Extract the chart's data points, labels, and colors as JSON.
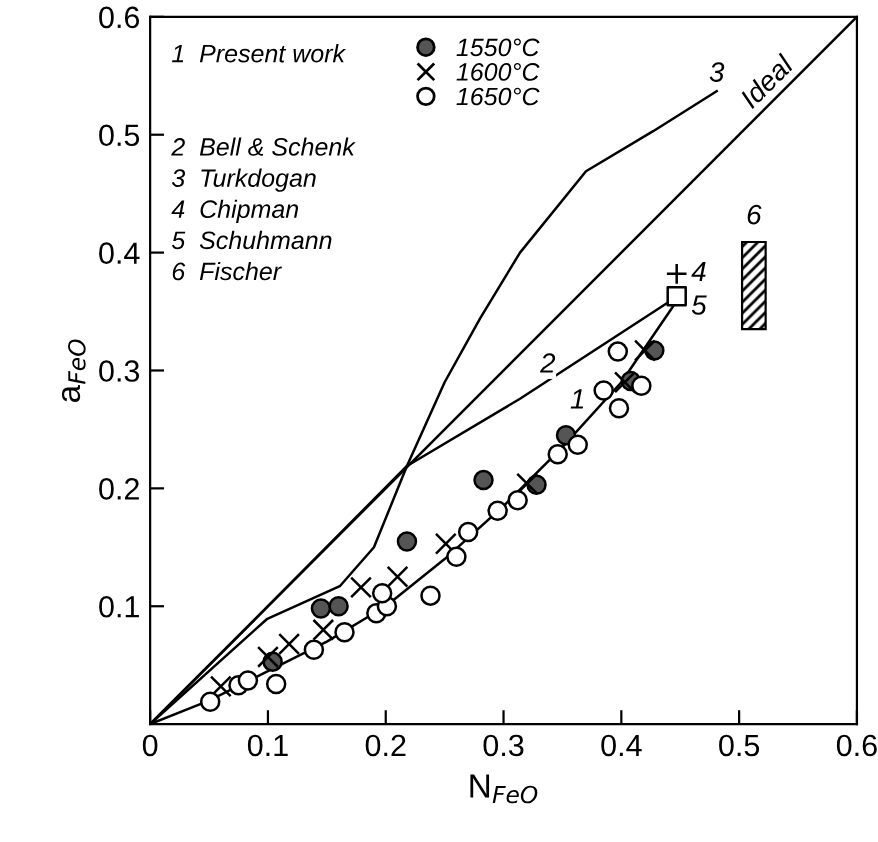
{
  "chart_data": {
    "type": "scatter",
    "xlabel": "N$_{FeO}$",
    "ylabel": "a$_{FeO}$",
    "xlim": [
      0,
      0.6
    ],
    "ylim": [
      0,
      0.6
    ],
    "xticks": [
      0,
      0.1,
      0.2,
      0.3,
      0.4,
      0.5,
      0.6
    ],
    "yticks": [
      0.1,
      0.2,
      0.3,
      0.4,
      0.5,
      0.6
    ],
    "grid": false,
    "legend": "top left",
    "series": [
      {
        "name": "1550°C",
        "marker": "circle",
        "color": "#555555",
        "x": [
          0.104,
          0.145,
          0.16,
          0.218,
          0.283,
          0.328,
          0.353,
          0.408,
          0.428
        ],
        "values": [
          0.053,
          0.098,
          0.1,
          0.155,
          0.207,
          0.203,
          0.245,
          0.291,
          0.317
        ]
      },
      {
        "name": "1600°C",
        "marker": "cross",
        "color": "#000000",
        "x": [
          0.06,
          0.1,
          0.118,
          0.147,
          0.179,
          0.21,
          0.251,
          0.32,
          0.403,
          0.42
        ],
        "values": [
          0.032,
          0.057,
          0.068,
          0.08,
          0.116,
          0.125,
          0.153,
          0.204,
          0.29,
          0.317
        ]
      },
      {
        "name": "1650°C",
        "marker": "circle",
        "color": "#ffffff",
        "x": [
          0.051,
          0.075,
          0.083,
          0.107,
          0.139,
          0.165,
          0.192,
          0.201,
          0.197,
          0.238,
          0.26,
          0.27,
          0.295,
          0.312,
          0.346,
          0.363,
          0.385,
          0.398,
          0.417,
          0.397
        ],
        "values": [
          0.019,
          0.033,
          0.037,
          0.034,
          0.063,
          0.078,
          0.094,
          0.1,
          0.111,
          0.109,
          0.142,
          0.163,
          0.181,
          0.19,
          0.229,
          0.237,
          0.283,
          0.268,
          0.287,
          0.316
        ]
      },
      {
        "name": "1",
        "type": "line",
        "color": "#000000",
        "x": [
          0,
          0.05,
          0.1,
          0.15,
          0.2,
          0.25,
          0.3,
          0.35,
          0.4,
          0.445
        ],
        "values": [
          0,
          0.02,
          0.045,
          0.07,
          0.1,
          0.14,
          0.185,
          0.235,
          0.29,
          0.356
        ]
      },
      {
        "name": "2",
        "type": "line",
        "color": "#000000",
        "x": [
          0,
          0.1,
          0.218,
          0.314,
          0.44
        ],
        "values": [
          0,
          0.1,
          0.219,
          0.276,
          0.358
        ]
      },
      {
        "name": "3",
        "type": "line",
        "color": "#000000",
        "x": [
          0,
          0.099,
          0.161,
          0.19,
          0.218,
          0.25,
          0.28,
          0.314,
          0.37,
          0.427,
          0.481
        ],
        "values": [
          0,
          0.089,
          0.117,
          0.15,
          0.219,
          0.29,
          0.344,
          0.4,
          0.469,
          0.503,
          0.537
        ]
      },
      {
        "name": "Ideal",
        "type": "line",
        "color": "#000000",
        "x": [
          0,
          0.6
        ],
        "values": [
          0,
          0.6
        ]
      },
      {
        "name": "4",
        "type": "scatter",
        "marker": "plus",
        "color": "#000000",
        "x": [
          0.447
        ],
        "values": [
          0.382
        ]
      },
      {
        "name": "5",
        "type": "scatter",
        "marker": "square",
        "color": "#ffffff",
        "x": [
          0.447
        ],
        "values": [
          0.363
        ]
      },
      {
        "name": "6",
        "type": "bar",
        "color": "#000000",
        "x": [
          0.5125
        ],
        "base": [
          0.335
        ],
        "values": [
          0.074
        ]
      }
    ],
    "annotations": [
      "1  Present work",
      "2  Bell & Schenk",
      "3  Turkdogan",
      "4  Chipman",
      "5  Schuhmann",
      "6  Fischer"
    ]
  }
}
